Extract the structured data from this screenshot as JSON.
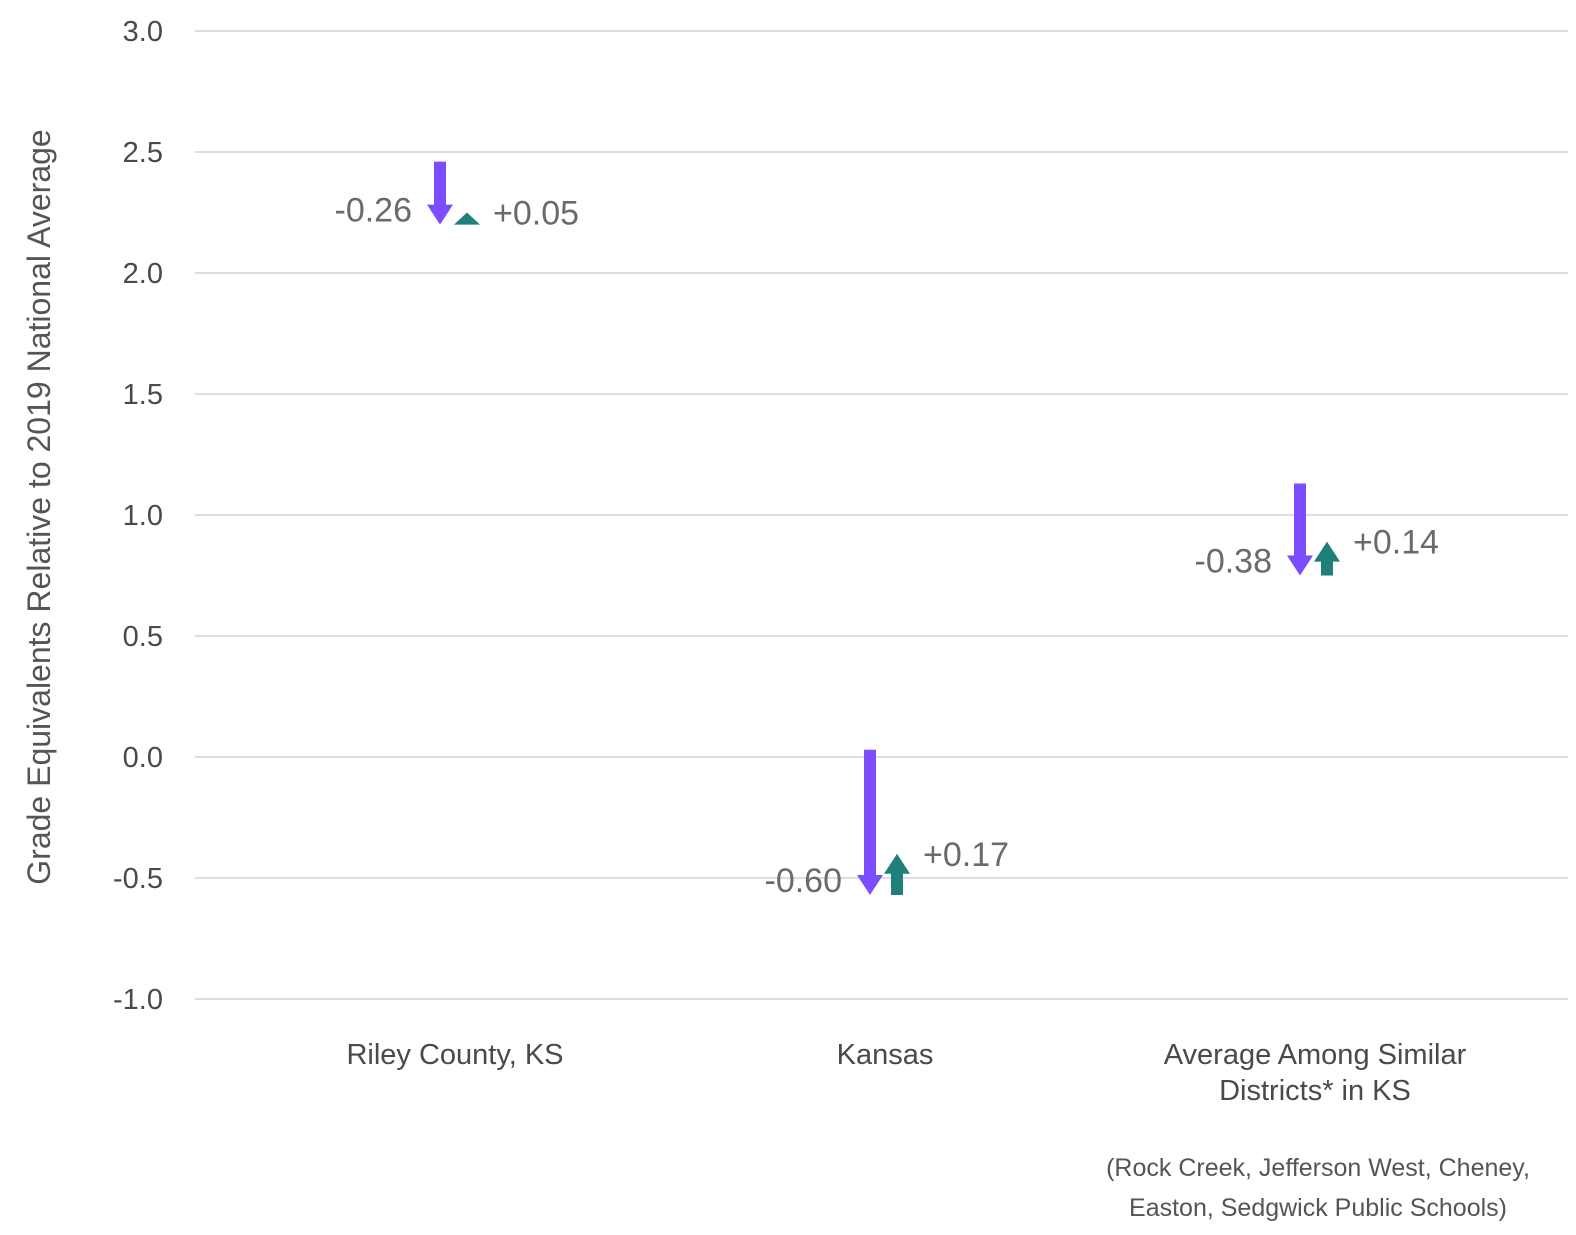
{
  "chart_data": {
    "type": "arrow",
    "ylabel": "Grade Equivalents Relative to 2019 National Average",
    "ylim": [
      -1.0,
      3.0
    ],
    "yticks": [
      "3.0",
      "2.5",
      "2.0",
      "1.5",
      "1.0",
      "0.5",
      "0.0",
      "-0.5",
      "-1.0"
    ],
    "grid": true,
    "categories": [
      {
        "lines": [
          "Riley County, KS"
        ]
      },
      {
        "lines": [
          "Kansas"
        ]
      },
      {
        "lines": [
          "Average Among Similar",
          "Districts* in KS"
        ]
      }
    ],
    "series": [
      {
        "values": [
          {
            "start": 2.46,
            "change": -0.26,
            "label": "-0.26"
          },
          {
            "start": 0.03,
            "change": -0.6,
            "label": "-0.60"
          },
          {
            "start": 1.13,
            "change": -0.38,
            "label": "-0.38"
          }
        ]
      },
      {
        "values": [
          {
            "start": 2.2,
            "change": 0.05,
            "label": "+0.05"
          },
          {
            "start": -0.57,
            "change": 0.17,
            "label": "+0.17"
          },
          {
            "start": 0.75,
            "change": 0.14,
            "label": "+0.14"
          }
        ]
      }
    ],
    "footnote": [
      "(Rock Creek, Jefferson West, Cheney,",
      "Easton, Sedgwick Public Schools)"
    ],
    "colors": {
      "decline": "#7b4dff",
      "recovery": "#1e7f7b",
      "grid": "#dedede",
      "text": "#4a4a4a"
    }
  }
}
